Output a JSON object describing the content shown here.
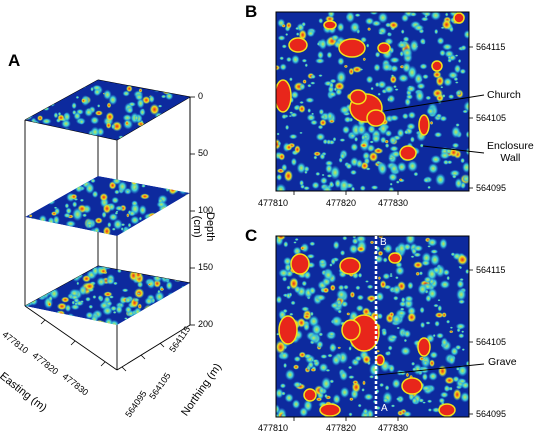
{
  "colors": {
    "low": "#0d2a9e",
    "mid_low": "#1f7ad6",
    "mid": "#3fd0d8",
    "mid_high": "#c8e84a",
    "high": "#f2e31b",
    "peak": "#e8261b",
    "grave_line": "#ffffff",
    "frame": "#000000"
  },
  "panel_a": {
    "letter": "A",
    "depth_ticks": [
      "0",
      "50",
      "100",
      "150",
      "200"
    ],
    "depth_label": "Depth\n(cm)",
    "easting_ticks": [
      "477810",
      "477820",
      "477830"
    ],
    "easting_label": "Easting (m)",
    "northing_ticks": [
      "564115",
      "564105",
      "564095"
    ],
    "northing_label": "Northing (m)"
  },
  "panel_b": {
    "letter": "B",
    "x_ticks": [
      "477810",
      "477820",
      "477830"
    ],
    "y_ticks": [
      "564115",
      "564105",
      "564095"
    ],
    "annotations": {
      "church": "Church",
      "enclosure": "Enclosure\nWall"
    }
  },
  "panel_c": {
    "letter": "C",
    "x_ticks": [
      "477810",
      "477820",
      "477830"
    ],
    "y_ticks": [
      "564115",
      "564105",
      "564095"
    ],
    "profile_start": "A",
    "profile_end": "B",
    "annotations": {
      "grave": "Grave"
    }
  }
}
